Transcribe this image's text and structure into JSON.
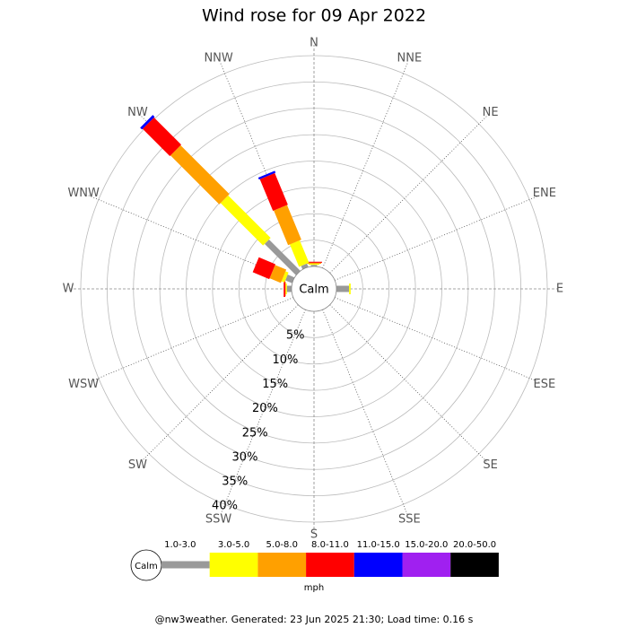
{
  "chart_data": {
    "type": "windrose",
    "title": "Wind rose for 09 Apr 2022",
    "categories": [
      "N",
      "NNE",
      "NE",
      "ENE",
      "E",
      "ESE",
      "SE",
      "SSE",
      "S",
      "SSW",
      "SW",
      "WSW",
      "W",
      "WNW",
      "NW",
      "NNW"
    ],
    "series": [
      {
        "name": "1.0-3.0",
        "color": "#999999",
        "values": [
          0.3,
          0,
          0,
          0,
          2.4,
          0,
          0,
          0,
          0,
          0,
          0,
          0,
          0.9,
          1.4,
          8.4,
          0.7
        ]
      },
      {
        "name": "3.0-5.0",
        "color": "#ffff00",
        "values": [
          0.2,
          0,
          0,
          0,
          0.3,
          0,
          0,
          0,
          0,
          0,
          0,
          0,
          0.2,
          0.6,
          11.4,
          4.6
        ]
      },
      {
        "name": "5.0-8.0",
        "color": "#ffa000",
        "values": [
          0.2,
          0,
          0,
          0,
          0,
          0,
          0,
          0,
          0,
          0,
          0,
          0,
          0.1,
          2.3,
          13.1,
          7.1
        ]
      },
      {
        "name": "8.0-11.0",
        "color": "#ff0000",
        "values": [
          0.2,
          0,
          0,
          0,
          0,
          0,
          0,
          0,
          0,
          0,
          0,
          0,
          0.3,
          3.4,
          7.3,
          6.5
        ]
      },
      {
        "name": "11.0-15.0",
        "color": "#0000ff",
        "values": [
          0,
          0,
          0,
          0,
          0,
          0,
          0,
          0,
          0,
          0,
          0,
          0,
          0,
          0,
          0.5,
          0.4
        ]
      },
      {
        "name": "15.0-20.0",
        "color": "#a020f0",
        "values": [
          0,
          0,
          0,
          0,
          0,
          0,
          0,
          0,
          0,
          0,
          0,
          0,
          0,
          0,
          0,
          0
        ]
      },
      {
        "name": "20.0-50.0",
        "color": "#000000",
        "values": [
          0,
          0,
          0,
          0,
          0,
          0,
          0,
          0,
          0,
          0,
          0,
          0,
          0,
          0,
          0,
          0
        ]
      }
    ],
    "rlim": [
      0,
      40
    ],
    "rticks": [
      {
        "value": 5,
        "label": "5%"
      },
      {
        "value": 10,
        "label": "10%"
      },
      {
        "value": 15,
        "label": "15%"
      },
      {
        "value": 20,
        "label": "20%"
      },
      {
        "value": 25,
        "label": "25%"
      },
      {
        "value": 30,
        "label": "30%"
      },
      {
        "value": 35,
        "label": "35%"
      },
      {
        "value": 40,
        "label": "40%"
      }
    ],
    "calm_label": "Calm",
    "unit": "mph",
    "footer": "@nw3weather. Generated: 23 Jun 2025 21:30; Load time: 0.16 s"
  }
}
